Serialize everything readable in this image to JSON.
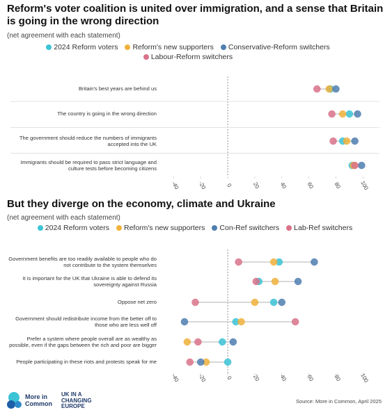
{
  "chart_data": [
    {
      "type": "dot",
      "title": "Reform's voter coalition is united over immigration, and a sense that Britain is going in the wrong direction",
      "subtitle": "(net agreement with each statement)",
      "categories": [
        "Britain's best years are behind us",
        "The country is going in the wrong direction",
        "The government should reduce the numbers of immigrants accepted into the UK",
        "Immigrants should be required to pass strict language and culture tests before becoming citizens"
      ],
      "series": [
        {
          "name": "2024 Reform voters",
          "color": "#3cc3d6",
          "values": [
            76,
            90,
            85,
            92
          ]
        },
        {
          "name": "Reform's new supporters",
          "color": "#f0b23c",
          "values": [
            75,
            85,
            88,
            93
          ]
        },
        {
          "name": "Conservative-Reform switchers",
          "color": "#4f7fb0",
          "values": [
            80,
            96,
            94,
            99
          ]
        },
        {
          "name": "Labour-Reform switchers",
          "color": "#d9728a",
          "values": [
            66,
            77,
            78,
            94
          ]
        }
      ],
      "xlim": [
        -50,
        105
      ],
      "xticks": [
        -40,
        -20,
        0,
        20,
        40,
        60,
        80,
        100
      ]
    },
    {
      "type": "dot",
      "title": "But they diverge on the economy, climate and Ukraine",
      "subtitle": "(net agreement with each statement)",
      "categories": [
        "Government benefits are too readily available to people who do not contribute to the system themselves",
        "It is important for the UK that Ukraine is able to defend its sovereignty against Russia",
        "Oppose net zero",
        "Government should redistribute income from the better off to those who are less well off",
        "Prefer a system where people overall are as wealthy as possible, even if the gaps between the rich and poor are bigger",
        "People participating in these riots and protests speak for me"
      ],
      "series": [
        {
          "name": "2024 Reform voters",
          "color": "#3cc3d6",
          "values": [
            38,
            23,
            34,
            6,
            -4,
            0
          ]
        },
        {
          "name": "Reform's new supporters",
          "color": "#f0b23c",
          "values": [
            34,
            35,
            20,
            10,
            -30,
            -16
          ]
        },
        {
          "name": "Con-Ref switchers",
          "color": "#4f7fb0",
          "values": [
            64,
            52,
            40,
            -32,
            4,
            -20
          ]
        },
        {
          "name": "Lab-Ref switchers",
          "color": "#d9728a",
          "values": [
            8,
            21,
            -24,
            50,
            -22,
            -28
          ]
        }
      ],
      "xlim": [
        -50,
        105
      ],
      "xticks": [
        -40,
        -20,
        0,
        20,
        40,
        60,
        80,
        100
      ]
    }
  ],
  "footer": {
    "logo_1": "More in Common",
    "logo_2": "UK IN A CHANGING EUROPE",
    "source": "Source: More in Common, April 2025"
  }
}
